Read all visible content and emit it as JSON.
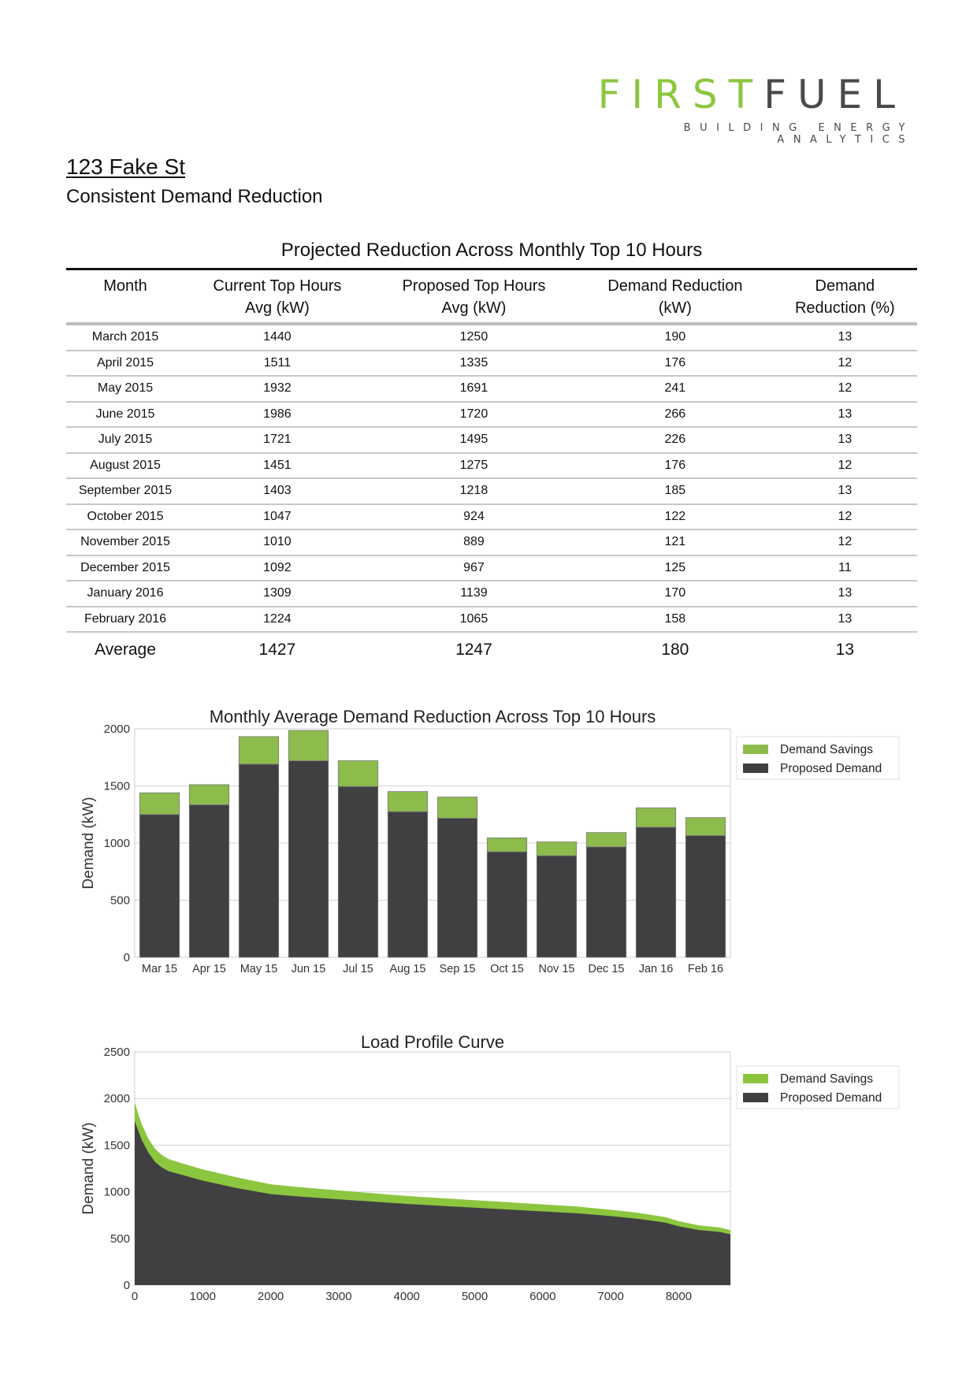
{
  "logo": {
    "first": "FIRST",
    "fuel": "FUEL",
    "tagline": "BUILDING ENERGY ANALYTICS"
  },
  "address": "123 Fake St",
  "subtitle": "Consistent Demand Reduction",
  "table": {
    "title": "Projected Reduction Across Monthly Top 10 Hours",
    "headers": [
      {
        "line1": "Month",
        "line2": ""
      },
      {
        "line1": "Current Top Hours",
        "line2": "Avg (kW)"
      },
      {
        "line1": "Proposed Top Hours",
        "line2": "Avg (kW)"
      },
      {
        "line1": "Demand Reduction",
        "line2": "(kW)"
      },
      {
        "line1": "Demand",
        "line2": "Reduction (%)"
      }
    ],
    "rows": [
      [
        "March 2015",
        "1440",
        "1250",
        "190",
        "13"
      ],
      [
        "April 2015",
        "1511",
        "1335",
        "176",
        "12"
      ],
      [
        "May 2015",
        "1932",
        "1691",
        "241",
        "12"
      ],
      [
        "June 2015",
        "1986",
        "1720",
        "266",
        "13"
      ],
      [
        "July 2015",
        "1721",
        "1495",
        "226",
        "13"
      ],
      [
        "August 2015",
        "1451",
        "1275",
        "176",
        "12"
      ],
      [
        "September 2015",
        "1403",
        "1218",
        "185",
        "13"
      ],
      [
        "October 2015",
        "1047",
        "924",
        "122",
        "12"
      ],
      [
        "November 2015",
        "1010",
        "889",
        "121",
        "12"
      ],
      [
        "December 2015",
        "1092",
        "967",
        "125",
        "11"
      ],
      [
        "January 2016",
        "1309",
        "1139",
        "170",
        "13"
      ],
      [
        "February 2016",
        "1224",
        "1065",
        "158",
        "13"
      ]
    ],
    "footer": [
      "Average",
      "1427",
      "1247",
      "180",
      "13"
    ]
  },
  "colors": {
    "savings": "#8dbb4c",
    "savings_bright": "#8cc63f",
    "proposed": "#404042",
    "grid": "#d4d4d4",
    "axis": "#9a9a9a"
  },
  "chart_data": [
    {
      "type": "bar",
      "title": "Monthly Average Demand Reduction Across Top 10 Hours",
      "xlabel": "",
      "ylabel": "Demand (kW)",
      "ylim": [
        0,
        2000
      ],
      "yticks": [
        0,
        500,
        1000,
        1500,
        2000
      ],
      "stacked": true,
      "categories": [
        "Mar 15",
        "Apr 15",
        "May 15",
        "Jun 15",
        "Jul 15",
        "Aug 15",
        "Sep 15",
        "Oct 15",
        "Nov 15",
        "Dec 15",
        "Jan 16",
        "Feb 16"
      ],
      "series": [
        {
          "name": "Proposed Demand",
          "values": [
            1250,
            1335,
            1691,
            1720,
            1495,
            1275,
            1218,
            924,
            889,
            967,
            1139,
            1065
          ]
        },
        {
          "name": "Demand Savings",
          "values": [
            190,
            176,
            241,
            266,
            226,
            176,
            185,
            122,
            121,
            125,
            170,
            158
          ]
        }
      ],
      "legend": [
        "Demand Savings",
        "Proposed Demand"
      ],
      "legend_position": "right",
      "grid": true
    },
    {
      "type": "area",
      "title": "Load Profile Curve",
      "xlabel": "",
      "ylabel": "Demand (kW)",
      "xlim": [
        0,
        8760
      ],
      "ylim": [
        0,
        2500
      ],
      "xticks": [
        0,
        1000,
        2000,
        3000,
        4000,
        5000,
        6000,
        7000,
        8000
      ],
      "yticks": [
        0,
        500,
        1000,
        1500,
        2000,
        2500
      ],
      "stacked": true,
      "x": [
        0,
        50,
        100,
        200,
        300,
        400,
        500,
        700,
        1000,
        1500,
        2000,
        2500,
        3000,
        3500,
        4000,
        4500,
        5000,
        5500,
        6000,
        6500,
        7000,
        7400,
        7800,
        8000,
        8300,
        8600,
        8760
      ],
      "series": [
        {
          "name": "Proposed Demand",
          "values": [
            1760,
            1660,
            1560,
            1420,
            1320,
            1260,
            1220,
            1180,
            1120,
            1040,
            975,
            945,
            920,
            895,
            870,
            850,
            830,
            810,
            790,
            770,
            740,
            710,
            670,
            630,
            590,
            570,
            545
          ]
        },
        {
          "name": "Demand Savings",
          "values": [
            200,
            180,
            170,
            150,
            140,
            135,
            130,
            125,
            120,
            115,
            105,
            100,
            95,
            90,
            85,
            82,
            80,
            78,
            75,
            72,
            68,
            65,
            60,
            55,
            50,
            48,
            45
          ]
        }
      ],
      "legend": [
        "Demand Savings",
        "Proposed Demand"
      ],
      "legend_position": "right",
      "grid": true
    }
  ]
}
